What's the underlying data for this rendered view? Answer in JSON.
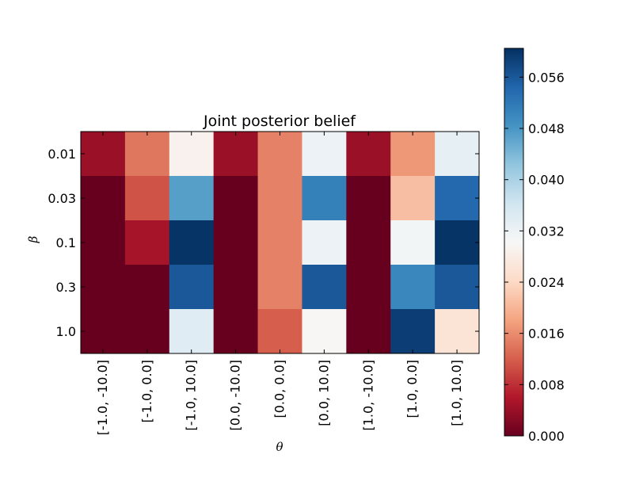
{
  "chart_data": {
    "type": "heatmap",
    "title": "Joint posterior belief",
    "xlabel": "θ",
    "ylabel": "β",
    "x_categories": [
      "[-1.0, -10.0]",
      "[-1.0, 0.0]",
      "[-1.0, 10.0]",
      "[0.0, -10.0]",
      "[0.0, 0.0]",
      "[0.0, 10.0]",
      "[1.0, -10.0]",
      "[1.0, 0.0]",
      "[1.0, 10.0]"
    ],
    "y_categories": [
      "0.01",
      "0.03",
      "0.1",
      "0.3",
      "1.0"
    ],
    "values": [
      [
        0.004,
        0.014,
        0.029,
        0.004,
        0.015,
        0.032,
        0.004,
        0.017,
        0.033
      ],
      [
        0.0,
        0.011,
        0.047,
        0.0,
        0.015,
        0.051,
        0.0,
        0.021,
        0.054
      ],
      [
        0.0,
        0.005,
        0.06,
        0.0,
        0.015,
        0.032,
        0.0,
        0.031,
        0.06
      ],
      [
        0.0,
        0.0,
        0.056,
        0.0,
        0.015,
        0.056,
        0.0,
        0.05,
        0.056
      ],
      [
        0.0,
        0.0,
        0.034,
        0.0,
        0.012,
        0.03,
        0.0,
        0.059,
        0.026
      ]
    ],
    "colormap": "RdBu",
    "vmin": 0.0,
    "vmax": 0.0605,
    "colorbar_ticks": [
      "0.000",
      "0.008",
      "0.016",
      "0.024",
      "0.032",
      "0.040",
      "0.048",
      "0.056"
    ],
    "colorbar_tick_values": [
      0.0,
      0.008,
      0.016,
      0.024,
      0.032,
      0.04,
      0.048,
      0.056
    ],
    "colormap_stops": [
      "#67001f",
      "#b2182b",
      "#d6604d",
      "#f4a582",
      "#fddbc7",
      "#f7f7f7",
      "#d1e5f0",
      "#92c5de",
      "#4393c3",
      "#2166ac",
      "#053061"
    ]
  }
}
